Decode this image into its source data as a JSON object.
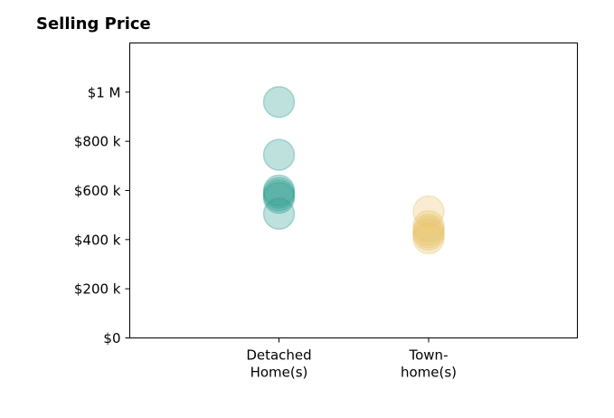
{
  "chart_data": {
    "type": "scatter",
    "title": "Selling Price",
    "xlabel": "",
    "ylabel": "",
    "ylim": [
      0,
      1200000
    ],
    "y_ticks": [
      {
        "value": 0,
        "label": "$0"
      },
      {
        "value": 200000,
        "label": "$200 k"
      },
      {
        "value": 400000,
        "label": "$400 k"
      },
      {
        "value": 600000,
        "label": "$600 k"
      },
      {
        "value": 800000,
        "label": "$800 k"
      },
      {
        "value": 1000000,
        "label": "$1 M"
      }
    ],
    "categories": [
      [
        "Detached",
        "Home(s)"
      ],
      [
        "Town-",
        "home(s)"
      ]
    ],
    "grid": false,
    "series": [
      {
        "category_index": 0,
        "color": "#2a9d8f",
        "values": [
          960000,
          745000,
          600000,
          590000,
          580000,
          570000,
          505000
        ]
      },
      {
        "category_index": 1,
        "color": "#e9c46a",
        "values": [
          515000,
          455000,
          440000,
          430000,
          420000,
          405000
        ]
      }
    ]
  }
}
